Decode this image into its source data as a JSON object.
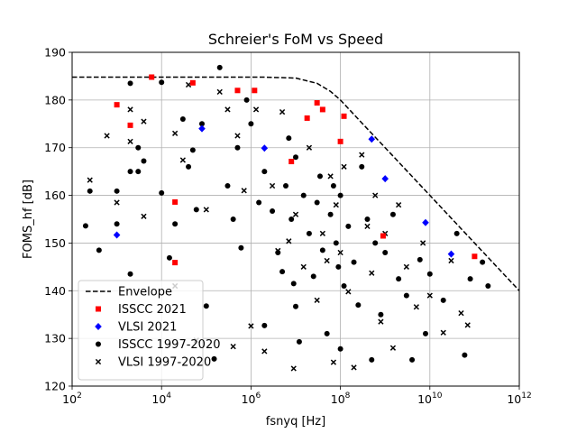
{
  "chart_data": {
    "type": "scatter",
    "title": "Schreier's FoM vs Speed",
    "xlabel": "fsnyq [Hz]",
    "ylabel": "FOMS_hf [dB]",
    "x_scale": "log",
    "xlim": [
      100,
      1000000000000
    ],
    "ylim": [
      120,
      190
    ],
    "x_ticks": [
      {
        "value": 100,
        "base": "10",
        "exp": "2"
      },
      {
        "value": 10000,
        "base": "10",
        "exp": "4"
      },
      {
        "value": 1000000,
        "base": "10",
        "exp": "6"
      },
      {
        "value": 100000000,
        "base": "10",
        "exp": "8"
      },
      {
        "value": 10000000000,
        "base": "10",
        "exp": "10"
      },
      {
        "value": 1000000000000,
        "base": "10",
        "exp": "12"
      }
    ],
    "y_ticks": [
      "120",
      "130",
      "140",
      "150",
      "160",
      "170",
      "180",
      "190"
    ],
    "grid": true,
    "legend_position": "lower-left",
    "legend": [
      {
        "label": "Envelope",
        "marker": "dashed-line",
        "color": "#000000"
      },
      {
        "label": "ISSCC 2021",
        "marker": "square",
        "color": "#ff0000"
      },
      {
        "label": "VLSI 2021",
        "marker": "diamond",
        "color": "#0000ff"
      },
      {
        "label": "ISSCC 1997-2020",
        "marker": "circle",
        "color": "#000000"
      },
      {
        "label": "VLSI 1997-2020",
        "marker": "x",
        "color": "#000000"
      }
    ],
    "envelope": {
      "name": "Envelope",
      "points": [
        [
          100,
          184.8
        ],
        [
          2000000,
          184.8
        ],
        [
          10000000,
          184.6
        ],
        [
          30000000,
          183.5
        ],
        [
          60000000,
          181.8
        ],
        [
          100000000,
          180.0
        ],
        [
          300000000,
          175.2
        ],
        [
          1000000000,
          170.0
        ],
        [
          10000000000,
          160.0
        ],
        [
          100000000000,
          150.0
        ],
        [
          1000000000000,
          140.0
        ]
      ]
    },
    "series": [
      {
        "name": "ISSCC 2021",
        "marker": "square",
        "color": "#ff0000",
        "points": [
          [
            1000,
            179
          ],
          [
            2000,
            174.7
          ],
          [
            6000,
            184.8
          ],
          [
            20000,
            158.6
          ],
          [
            20000,
            145.9
          ],
          [
            50000,
            183.6
          ],
          [
            500000,
            182
          ],
          [
            1200000,
            182
          ],
          [
            8000000,
            167.1
          ],
          [
            18000000,
            176.2
          ],
          [
            30000000,
            179.4
          ],
          [
            40000000,
            178
          ],
          [
            100000000,
            171.3
          ],
          [
            120000000,
            176.6
          ],
          [
            900000000,
            151.5
          ],
          [
            100000000000,
            147.2
          ]
        ]
      },
      {
        "name": "VLSI 2021",
        "marker": "diamond",
        "color": "#0000ff",
        "points": [
          [
            1000,
            151.7
          ],
          [
            80000,
            174
          ],
          [
            2000000,
            169.9
          ],
          [
            500000000,
            171.8
          ],
          [
            1000000000,
            163.5
          ],
          [
            8000000000,
            154.3
          ],
          [
            30000000000,
            147.7
          ]
        ]
      },
      {
        "name": "ISSCC 1997-2020",
        "marker": "circle",
        "color": "#000000",
        "points": [
          [
            200,
            153.6
          ],
          [
            250,
            160.9
          ],
          [
            400,
            148.5
          ],
          [
            1000,
            160.9
          ],
          [
            1000,
            154
          ],
          [
            2000,
            183.5
          ],
          [
            2000,
            165
          ],
          [
            2000,
            143.5
          ],
          [
            3000,
            170
          ],
          [
            3000,
            165
          ],
          [
            4000,
            167.2
          ],
          [
            10000,
            183.7
          ],
          [
            10000,
            160.5
          ],
          [
            15000,
            146.9
          ],
          [
            20000,
            154
          ],
          [
            30000,
            176
          ],
          [
            40000,
            166
          ],
          [
            50000,
            169.5
          ],
          [
            60000,
            157
          ],
          [
            80000,
            175
          ],
          [
            100000,
            136.8
          ],
          [
            150000,
            125.7
          ],
          [
            200000,
            186.8
          ],
          [
            300000,
            162
          ],
          [
            400000,
            155
          ],
          [
            500000,
            170
          ],
          [
            600000,
            149
          ],
          [
            800000,
            180
          ],
          [
            1000000,
            175
          ],
          [
            1500000,
            158.5
          ],
          [
            2000000,
            132.7
          ],
          [
            2000000,
            165
          ],
          [
            3000000,
            156.7
          ],
          [
            4000000,
            148
          ],
          [
            5000000,
            144
          ],
          [
            6000000,
            162
          ],
          [
            7000000,
            172
          ],
          [
            8000000,
            155
          ],
          [
            9000000,
            141.5
          ],
          [
            10000000,
            168
          ],
          [
            10000000,
            136.7
          ],
          [
            12000000,
            129.3
          ],
          [
            15000000,
            160
          ],
          [
            20000000,
            152
          ],
          [
            25000000,
            143
          ],
          [
            30000000,
            158.5
          ],
          [
            35000000,
            164
          ],
          [
            40000000,
            148.5
          ],
          [
            50000000,
            131
          ],
          [
            60000000,
            156
          ],
          [
            70000000,
            162
          ],
          [
            80000000,
            150
          ],
          [
            90000000,
            145
          ],
          [
            100000000,
            160
          ],
          [
            100000000,
            127.8
          ],
          [
            120000000,
            141
          ],
          [
            150000000,
            153.5
          ],
          [
            200000000,
            146
          ],
          [
            250000000,
            137
          ],
          [
            300000000,
            166
          ],
          [
            400000000,
            155
          ],
          [
            500000000,
            125.5
          ],
          [
            600000000,
            150
          ],
          [
            800000000,
            135
          ],
          [
            1000000000,
            148
          ],
          [
            1500000000,
            156
          ],
          [
            2000000000,
            142.5
          ],
          [
            3000000000,
            139
          ],
          [
            4000000000,
            125.5
          ],
          [
            6000000000,
            146.5
          ],
          [
            8000000000,
            131
          ],
          [
            10000000000,
            143.5
          ],
          [
            20000000000,
            138
          ],
          [
            40000000000,
            152
          ],
          [
            60000000000,
            126.5
          ],
          [
            80000000000,
            142.5
          ],
          [
            150000000000,
            146
          ],
          [
            200000000000,
            141
          ]
        ]
      },
      {
        "name": "VLSI 1997-2020",
        "marker": "x",
        "color": "#000000",
        "points": [
          [
            250,
            163.2
          ],
          [
            600,
            172.5
          ],
          [
            1000,
            158.5
          ],
          [
            2000,
            171.3
          ],
          [
            2000,
            178
          ],
          [
            4000,
            175.5
          ],
          [
            4000,
            155.6
          ],
          [
            20000,
            173
          ],
          [
            20000,
            141
          ],
          [
            30000,
            167.4
          ],
          [
            40000,
            183.2
          ],
          [
            60000,
            129.6
          ],
          [
            100000,
            157
          ],
          [
            200000,
            181.7
          ],
          [
            300000,
            178
          ],
          [
            400000,
            128.3
          ],
          [
            500000,
            172.5
          ],
          [
            700000,
            161
          ],
          [
            1000000,
            132.6
          ],
          [
            1300000,
            178
          ],
          [
            2000000,
            127.3
          ],
          [
            3000000,
            162
          ],
          [
            4000000,
            148.4
          ],
          [
            5000000,
            177.5
          ],
          [
            7000000,
            150.4
          ],
          [
            9000000,
            123.7
          ],
          [
            10000000,
            156
          ],
          [
            15000000,
            145
          ],
          [
            20000000,
            170
          ],
          [
            30000000,
            138
          ],
          [
            40000000,
            152
          ],
          [
            50000000,
            146.3
          ],
          [
            60000000,
            164
          ],
          [
            70000000,
            125
          ],
          [
            80000000,
            158
          ],
          [
            100000000,
            148
          ],
          [
            120000000,
            166
          ],
          [
            150000000,
            139.8
          ],
          [
            200000000,
            123.9
          ],
          [
            300000000,
            168.5
          ],
          [
            400000000,
            153.5
          ],
          [
            500000000,
            143.7
          ],
          [
            600000000,
            160
          ],
          [
            800000000,
            133.5
          ],
          [
            1000000000,
            152
          ],
          [
            1500000000,
            128
          ],
          [
            2000000000,
            158
          ],
          [
            3000000000,
            145
          ],
          [
            5000000000,
            136.6
          ],
          [
            7000000000,
            150
          ],
          [
            10000000000,
            139
          ],
          [
            20000000000,
            131.2
          ],
          [
            30000000000,
            146.3
          ],
          [
            50000000000,
            135.3
          ],
          [
            70000000000,
            132.8
          ]
        ]
      }
    ]
  }
}
